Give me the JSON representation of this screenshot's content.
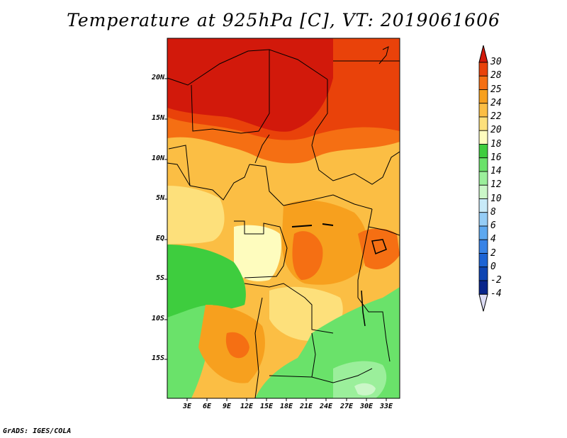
{
  "title": "Temperature at 925hPa [C], VT: 2019061606",
  "credit": "GrADS: IGES/COLA",
  "lat_labels": [
    "20N",
    "15N",
    "10N",
    "5N",
    "EQ",
    "5S",
    "10S",
    "15S"
  ],
  "lon_labels": [
    "3E",
    "6E",
    "9E",
    "12E",
    "15E",
    "18E",
    "21E",
    "24E",
    "27E",
    "30E",
    "33E"
  ],
  "colorbar": {
    "labels": [
      "30",
      "28",
      "25",
      "24",
      "22",
      "20",
      "18",
      "16",
      "14",
      "12",
      "10",
      "8",
      "6",
      "4",
      "2",
      "0",
      "-2",
      "-4"
    ],
    "colors": [
      "#d2190b",
      "#e9420a",
      "#f56f13",
      "#f7a01e",
      "#fbbe44",
      "#fde07b",
      "#fefcbe",
      "#3ecd3e",
      "#6ae26a",
      "#9bef9b",
      "#cbf7c8",
      "#c8eaf8",
      "#95cdf6",
      "#5da8ef",
      "#3883e6",
      "#1c63d4",
      "#0d44b2",
      "#08248a",
      "#06106a"
    ],
    "over_color": "#d2190b",
    "under_color": "#dcdcf4"
  }
}
